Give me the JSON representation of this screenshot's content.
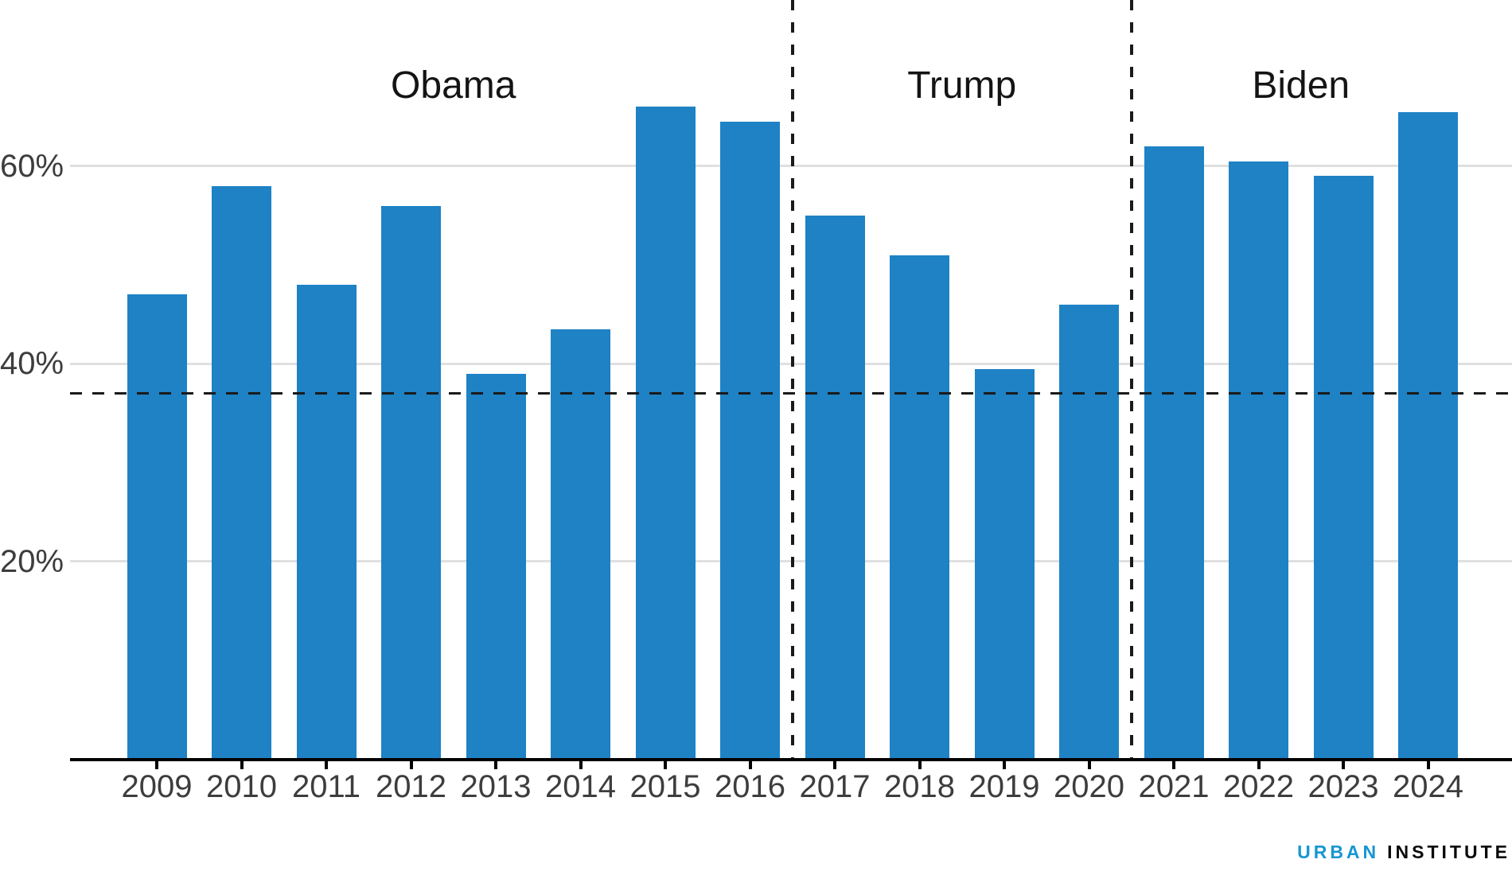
{
  "chart_data": {
    "type": "bar",
    "title": "",
    "xlabel": "",
    "ylabel": "",
    "unit": "%",
    "categories": [
      "2009",
      "2010",
      "2011",
      "2012",
      "2013",
      "2014",
      "2015",
      "2016",
      "2017",
      "2018",
      "2019",
      "2020",
      "2021",
      "2022",
      "2023",
      "2024"
    ],
    "values": [
      47,
      58,
      48,
      56,
      39,
      43.5,
      66,
      64.5,
      55,
      51,
      39.5,
      46,
      62,
      60.5,
      59,
      65.5
    ],
    "ylim": [
      0,
      77
    ],
    "grid": true,
    "legend": "none",
    "yticks": [
      {
        "value": 20,
        "label": "20%"
      },
      {
        "value": 40,
        "label": "40%"
      },
      {
        "value": 60,
        "label": "60%"
      }
    ],
    "reference_line": {
      "value": 37,
      "style": "horizontal-dashed"
    },
    "sections": [
      {
        "label": "Obama",
        "start_year": "2009",
        "end_year": "2016"
      },
      {
        "label": "Trump",
        "start_year": "2017",
        "end_year": "2020"
      },
      {
        "label": "Biden",
        "start_year": "2021",
        "end_year": "2024"
      }
    ]
  },
  "branding": {
    "word1": "URBAN",
    "word2": "INSTITUTE"
  },
  "colors": {
    "bar": "#1e82c5",
    "gridline": "#e0e0e0",
    "axis": "#000000",
    "tick_label": "#3d3d3d",
    "section_title": "#141414",
    "dashed_line": "#1a1a1a",
    "logo_urban": "#1696d2",
    "logo_institute": "#0a0a0a"
  }
}
